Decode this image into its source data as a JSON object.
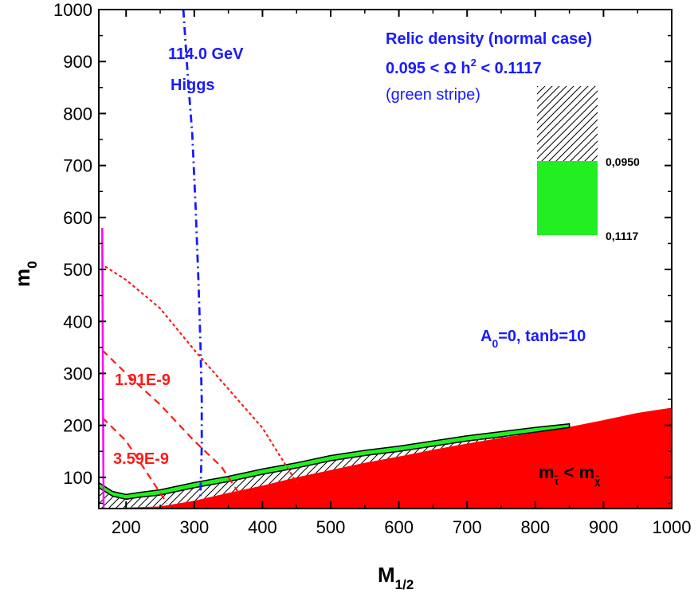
{
  "chart_data": {
    "type": "area",
    "x_axis": {
      "label_main": "M",
      "label_sub": "1/2",
      "range": [
        160,
        1000
      ],
      "ticks": [
        "200",
        "300",
        "400",
        "500",
        "600",
        "700",
        "800",
        "900",
        "1000"
      ]
    },
    "y_axis": {
      "label_main": "m",
      "label_sub": "0",
      "range": [
        40,
        1000
      ],
      "ticks": [
        "100",
        "200",
        "300",
        "400",
        "500",
        "600",
        "700",
        "800",
        "900",
        "1000"
      ]
    },
    "annotations": {
      "higgs_line1": "114.0  GeV",
      "higgs_line2": "Higgs",
      "relic_title": "Relic density  (normal case)",
      "relic_range_prefix": "0.095 <  Ω h",
      "relic_range_sup": "2",
      "relic_range_suffix": " < 0.1117",
      "relic_note": "(green stripe)",
      "legend_upper": "0,0950",
      "legend_lower": "0,1117",
      "params_prefix": "A",
      "params_sub": "0",
      "params_suffix": "=0, tanb=10",
      "contour_label_1": "1.91E-9",
      "contour_label_2": "3.59E-9",
      "stau_m": "m",
      "stau_tau_sub": "τ̃",
      "stau_lt": " < m",
      "stau_chi_sub": "χ̃"
    },
    "colors": {
      "stau_region": "#ff0000",
      "relic_band": "#22ee22",
      "higgs": "#1a1aff",
      "contours": "#ff1a1a",
      "chargino_limit": "#ff00ff",
      "annotation_text": "#1a1aff"
    },
    "stau_lsp_boundary": [
      [
        160,
        40
      ],
      [
        250,
        44
      ],
      [
        300,
        55
      ],
      [
        350,
        70
      ],
      [
        400,
        84
      ],
      [
        450,
        100
      ],
      [
        500,
        114
      ],
      [
        550,
        128
      ],
      [
        600,
        140
      ],
      [
        650,
        153
      ],
      [
        700,
        165
      ],
      [
        750,
        176
      ],
      [
        800,
        186
      ],
      [
        850,
        197
      ],
      [
        900,
        210
      ],
      [
        950,
        224
      ],
      [
        1000,
        234
      ]
    ],
    "relic_band_lower": [
      [
        160,
        80
      ],
      [
        180,
        64
      ],
      [
        200,
        58
      ],
      [
        220,
        62
      ],
      [
        250,
        66
      ],
      [
        300,
        80
      ],
      [
        350,
        92
      ],
      [
        400,
        106
      ],
      [
        450,
        118
      ],
      [
        500,
        132
      ],
      [
        550,
        142
      ],
      [
        600,
        150
      ],
      [
        650,
        160
      ],
      [
        700,
        170
      ],
      [
        750,
        178
      ],
      [
        800,
        187
      ],
      [
        850,
        196
      ]
    ],
    "relic_band_upper": [
      [
        160,
        90
      ],
      [
        180,
        73
      ],
      [
        200,
        67
      ],
      [
        220,
        71
      ],
      [
        250,
        76
      ],
      [
        300,
        90
      ],
      [
        350,
        102
      ],
      [
        400,
        116
      ],
      [
        450,
        128
      ],
      [
        500,
        142
      ],
      [
        550,
        152
      ],
      [
        600,
        160
      ],
      [
        650,
        170
      ],
      [
        700,
        180
      ],
      [
        750,
        188
      ],
      [
        800,
        196
      ],
      [
        850,
        203
      ]
    ],
    "higgs_contour": [
      [
        284,
        1000
      ],
      [
        290,
        880
      ],
      [
        297,
        760
      ],
      [
        302,
        620
      ],
      [
        306,
        480
      ],
      [
        309,
        360
      ],
      [
        311,
        250
      ],
      [
        311,
        160
      ],
      [
        309,
        60
      ]
    ],
    "contour_dotted": [
      [
        170,
        505
      ],
      [
        200,
        480
      ],
      [
        250,
        425
      ],
      [
        300,
        345
      ],
      [
        350,
        270
      ],
      [
        400,
        195
      ],
      [
        450,
        90
      ]
    ],
    "contour_dashed_191": [
      [
        165,
        345
      ],
      [
        200,
        300
      ],
      [
        250,
        240
      ],
      [
        300,
        170
      ],
      [
        340,
        120
      ],
      [
        370,
        60
      ]
    ],
    "contour_dashed_359": [
      [
        165,
        215
      ],
      [
        200,
        170
      ],
      [
        230,
        110
      ],
      [
        260,
        50
      ]
    ],
    "chargino_limit": [
      [
        165,
        580
      ],
      [
        166,
        300
      ],
      [
        167,
        40
      ]
    ]
  }
}
